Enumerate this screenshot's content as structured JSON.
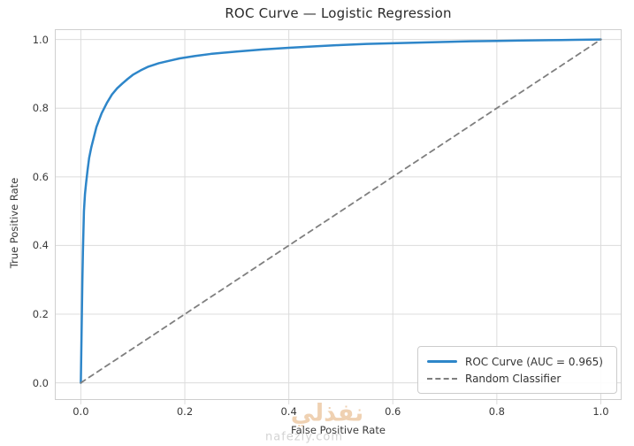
{
  "title": "ROC Curve — Logistic Regression",
  "watermark": {
    "brand_text": "نفذلي",
    "brand_url": "nafezly.com"
  },
  "colors": {
    "roc_curve": "#2e86c9",
    "random_classifier": "#7f7f7f",
    "grid": "#dcdcdc",
    "spine": "#cfcfcf",
    "tick_text": "#3a3a3a",
    "title_text": "#2a2a2a",
    "background": "#ffffff",
    "legend_border": "#cccccc",
    "watermark_arabic": "#e0a468",
    "watermark_url": "#bdbdbd"
  },
  "chart_data": {
    "type": "line",
    "title": "ROC Curve — Logistic Regression",
    "xlabel": "False Positive Rate",
    "ylabel": "True Positive Rate",
    "xlim": [
      -0.05,
      1.04
    ],
    "ylim": [
      -0.05,
      1.03
    ],
    "xticks": [
      0.0,
      0.2,
      0.4,
      0.6,
      0.8,
      1.0
    ],
    "yticks": [
      0.0,
      0.2,
      0.4,
      0.6,
      0.8,
      1.0
    ],
    "xtick_labels": [
      "0.0",
      "0.2",
      "0.4",
      "0.6",
      "0.8",
      "1.0"
    ],
    "ytick_labels": [
      "0.0",
      "0.2",
      "0.4",
      "0.6",
      "0.8",
      "1.0"
    ],
    "grid": true,
    "auc": 0.965,
    "legend_position": "lower right",
    "series": [
      {
        "name": "ROC Curve (AUC = 0.965)",
        "style": "solid",
        "color": "#2e86c9",
        "width": 2.5,
        "points": [
          [
            0.0,
            0.0
          ],
          [
            0.001,
            0.1
          ],
          [
            0.002,
            0.2
          ],
          [
            0.003,
            0.3
          ],
          [
            0.004,
            0.38
          ],
          [
            0.005,
            0.44
          ],
          [
            0.006,
            0.5
          ],
          [
            0.008,
            0.55
          ],
          [
            0.01,
            0.58
          ],
          [
            0.013,
            0.62
          ],
          [
            0.016,
            0.655
          ],
          [
            0.02,
            0.685
          ],
          [
            0.025,
            0.715
          ],
          [
            0.03,
            0.745
          ],
          [
            0.035,
            0.765
          ],
          [
            0.04,
            0.785
          ],
          [
            0.05,
            0.815
          ],
          [
            0.06,
            0.84
          ],
          [
            0.07,
            0.858
          ],
          [
            0.08,
            0.872
          ],
          [
            0.09,
            0.885
          ],
          [
            0.1,
            0.897
          ],
          [
            0.115,
            0.91
          ],
          [
            0.13,
            0.921
          ],
          [
            0.15,
            0.931
          ],
          [
            0.17,
            0.938
          ],
          [
            0.19,
            0.945
          ],
          [
            0.22,
            0.952
          ],
          [
            0.25,
            0.958
          ],
          [
            0.3,
            0.965
          ],
          [
            0.35,
            0.971
          ],
          [
            0.4,
            0.976
          ],
          [
            0.45,
            0.98
          ],
          [
            0.5,
            0.984
          ],
          [
            0.55,
            0.987
          ],
          [
            0.6,
            0.989
          ],
          [
            0.65,
            0.991
          ],
          [
            0.7,
            0.993
          ],
          [
            0.75,
            0.995
          ],
          [
            0.8,
            0.996
          ],
          [
            0.85,
            0.997
          ],
          [
            0.9,
            0.998
          ],
          [
            0.95,
            0.999
          ],
          [
            1.0,
            1.0
          ]
        ]
      },
      {
        "name": "Random Classifier",
        "style": "dashed",
        "color": "#7f7f7f",
        "width": 1.8,
        "points": [
          [
            0.0,
            0.0
          ],
          [
            1.0,
            1.0
          ]
        ]
      }
    ]
  }
}
